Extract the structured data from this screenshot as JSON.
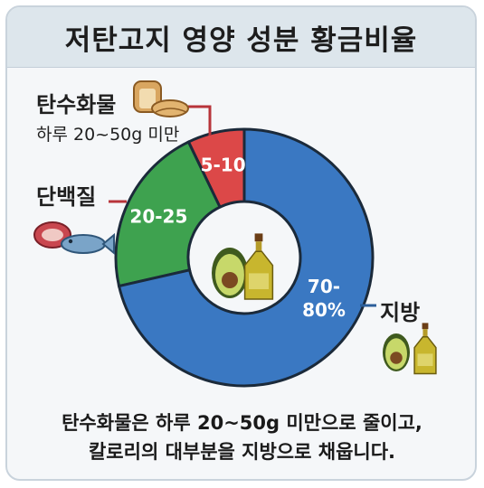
{
  "title": "저탄고지 영양 성분 황금비율",
  "chart_data": {
    "type": "pie",
    "categories": [
      "탄수화물",
      "단백질",
      "지방"
    ],
    "values": [
      7.5,
      22.5,
      75
    ],
    "slice_labels": [
      "5-10",
      "20-25",
      "70-\n80%"
    ],
    "colors": [
      "#dc4848",
      "#3ea24f",
      "#3a78c2"
    ]
  },
  "labels": {
    "carb": "탄수화물",
    "carb_sub": "하루 20~50g 미만",
    "protein": "단백질",
    "fat": "지방"
  },
  "icons": {
    "carb": "bread-icon",
    "protein": "meat-fish-icon",
    "center": "avocado-oil-icon",
    "fat": "avocado-oil-icon"
  },
  "footer": {
    "line1": "탄수화물은 하루 20~50g 미만으로 줄이고,",
    "line2": "칼로리의 대부분을 지방으로 채웁니다."
  }
}
